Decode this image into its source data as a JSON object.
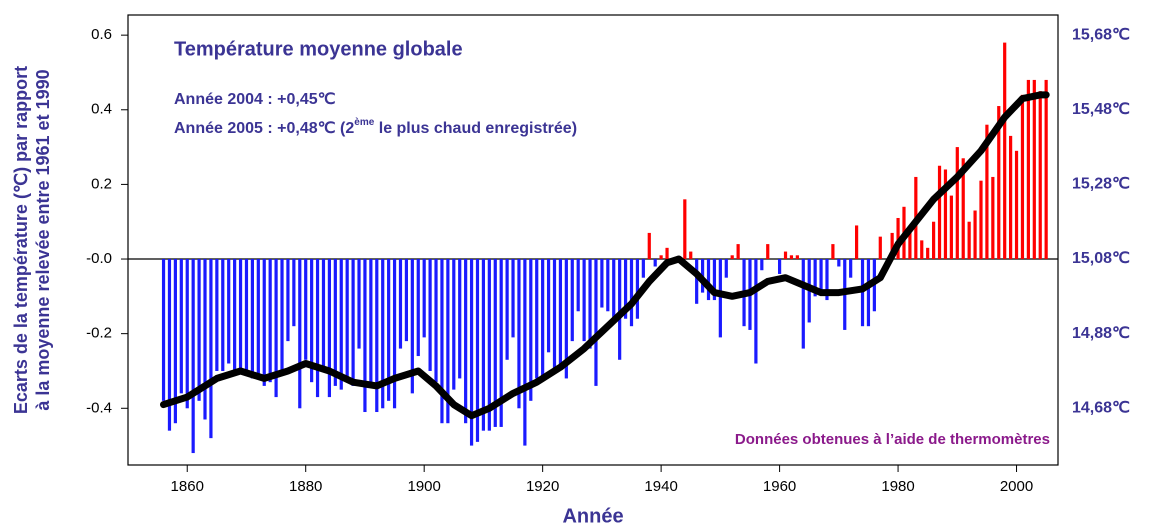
{
  "chart_data": {
    "type": "bar",
    "title": "Température moyenne globale",
    "annotations": [
      "Année 2004 : +0,45℃",
      "Année 2005 : +0,48℃ (2",
      "ème",
      " le plus chaud enregistrée)"
    ],
    "source": "Données obtenues à l’aide de thermomètres",
    "ylabel": [
      "Ecarts de la température (℃) par rapport",
      "à la moyenne relevée entre 1961 et 1990"
    ],
    "xlabel": "Année",
    "xlim": [
      1850,
      2007
    ],
    "xticks": [
      1860,
      1880,
      1900,
      1920,
      1940,
      1960,
      1980,
      2000
    ],
    "ylim": [
      -0.552,
      0.654
    ],
    "yticks": [
      0.6,
      0.4,
      0.2,
      {
        "value": 0,
        "label": "-0.0"
      },
      -0.2,
      -0.4
    ],
    "y2lim": [
      14.528,
      15.734
    ],
    "y2ticks": [
      {
        "value": 15.68,
        "label": "15,68℃"
      },
      {
        "value": 15.48,
        "label": "15,48℃"
      },
      {
        "value": 15.28,
        "label": "15,28℃"
      },
      {
        "value": 15.08,
        "label": "15,08℃"
      },
      {
        "value": 14.88,
        "label": "14,88℃"
      },
      {
        "value": 14.68,
        "label": "14,68℃"
      }
    ],
    "positive_color": "#ff0000",
    "negative_color": "#1a1aff",
    "line_color": "#000000",
    "text_color": "#3b3494",
    "source_color": "#8b1a8b",
    "x": [
      1856,
      1857,
      1858,
      1859,
      1860,
      1861,
      1862,
      1863,
      1864,
      1865,
      1866,
      1867,
      1868,
      1869,
      1870,
      1871,
      1872,
      1873,
      1874,
      1875,
      1876,
      1877,
      1878,
      1879,
      1880,
      1881,
      1882,
      1883,
      1884,
      1885,
      1886,
      1887,
      1888,
      1889,
      1890,
      1891,
      1892,
      1893,
      1894,
      1895,
      1896,
      1897,
      1898,
      1899,
      1900,
      1901,
      1902,
      1903,
      1904,
      1905,
      1906,
      1907,
      1908,
      1909,
      1910,
      1911,
      1912,
      1913,
      1914,
      1915,
      1916,
      1917,
      1918,
      1919,
      1920,
      1921,
      1922,
      1923,
      1924,
      1925,
      1926,
      1927,
      1928,
      1929,
      1930,
      1931,
      1932,
      1933,
      1934,
      1935,
      1936,
      1937,
      1938,
      1939,
      1940,
      1941,
      1942,
      1943,
      1944,
      1945,
      1946,
      1947,
      1948,
      1949,
      1950,
      1951,
      1952,
      1953,
      1954,
      1955,
      1956,
      1957,
      1958,
      1959,
      1960,
      1961,
      1962,
      1963,
      1964,
      1965,
      1966,
      1967,
      1968,
      1969,
      1970,
      1971,
      1972,
      1973,
      1974,
      1975,
      1976,
      1977,
      1978,
      1979,
      1980,
      1981,
      1982,
      1983,
      1984,
      1985,
      1986,
      1987,
      1988,
      1989,
      1990,
      1991,
      1992,
      1993,
      1994,
      1995,
      1996,
      1997,
      1998,
      1999,
      2000,
      2001,
      2002,
      2003,
      2004,
      2005
    ],
    "values": [
      -0.38,
      -0.46,
      -0.44,
      -0.36,
      -0.4,
      -0.52,
      -0.38,
      -0.43,
      -0.48,
      -0.3,
      -0.3,
      -0.28,
      -0.3,
      -0.3,
      -0.31,
      -0.32,
      -0.31,
      -0.34,
      -0.33,
      -0.37,
      -0.3,
      -0.22,
      -0.18,
      -0.4,
      -0.27,
      -0.33,
      -0.37,
      -0.3,
      -0.37,
      -0.34,
      -0.35,
      -0.32,
      -0.34,
      -0.24,
      -0.41,
      -0.33,
      -0.41,
      -0.4,
      -0.38,
      -0.4,
      -0.24,
      -0.22,
      -0.36,
      -0.26,
      -0.21,
      -0.3,
      -0.33,
      -0.44,
      -0.44,
      -0.35,
      -0.32,
      -0.44,
      -0.5,
      -0.49,
      -0.46,
      -0.46,
      -0.45,
      -0.45,
      -0.27,
      -0.21,
      -0.4,
      -0.5,
      -0.38,
      -0.32,
      -0.32,
      -0.25,
      -0.3,
      -0.29,
      -0.32,
      -0.22,
      -0.14,
      -0.22,
      -0.24,
      -0.34,
      -0.13,
      -0.14,
      -0.16,
      -0.27,
      -0.16,
      -0.18,
      -0.16,
      -0.05,
      0.07,
      -0.02,
      0.01,
      0.03,
      -0.01,
      0.0,
      0.16,
      0.02,
      -0.12,
      -0.09,
      -0.11,
      -0.11,
      -0.21,
      -0.05,
      0.01,
      0.04,
      -0.18,
      -0.19,
      -0.28,
      -0.03,
      0.04,
      0.0,
      -0.04,
      0.02,
      0.01,
      0.01,
      -0.24,
      -0.17,
      -0.1,
      -0.09,
      -0.11,
      0.04,
      -0.02,
      -0.19,
      -0.05,
      0.09,
      -0.18,
      -0.18,
      -0.14,
      0.06,
      0.0,
      0.07,
      0.11,
      0.14,
      0.08,
      0.22,
      0.05,
      0.03,
      0.1,
      0.25,
      0.24,
      0.17,
      0.3,
      0.27,
      0.1,
      0.13,
      0.21,
      0.36,
      0.22,
      0.41,
      0.58,
      0.33,
      0.29,
      0.44,
      0.48,
      0.48,
      0.45,
      0.48
    ],
    "smooth": {
      "x": [
        1856,
        1860,
        1865,
        1869,
        1873,
        1877,
        1880,
        1884,
        1888,
        1892,
        1895,
        1899,
        1902,
        1905,
        1908,
        1911,
        1915,
        1919,
        1923,
        1927,
        1931,
        1935,
        1938,
        1941,
        1943,
        1946,
        1949,
        1952,
        1955,
        1958,
        1961,
        1964,
        1967,
        1970,
        1974,
        1977,
        1980,
        1983,
        1986,
        1990,
        1994,
        1998,
        2001,
        2004,
        2005
      ],
      "values": [
        -0.39,
        -0.37,
        -0.32,
        -0.3,
        -0.32,
        -0.3,
        -0.28,
        -0.3,
        -0.33,
        -0.34,
        -0.32,
        -0.3,
        -0.34,
        -0.39,
        -0.42,
        -0.4,
        -0.36,
        -0.33,
        -0.29,
        -0.24,
        -0.18,
        -0.12,
        -0.06,
        -0.01,
        0.0,
        -0.04,
        -0.09,
        -0.1,
        -0.09,
        -0.06,
        -0.05,
        -0.07,
        -0.09,
        -0.09,
        -0.08,
        -0.05,
        0.04,
        0.1,
        0.16,
        0.22,
        0.29,
        0.38,
        0.43,
        0.44,
        0.44
      ]
    }
  }
}
